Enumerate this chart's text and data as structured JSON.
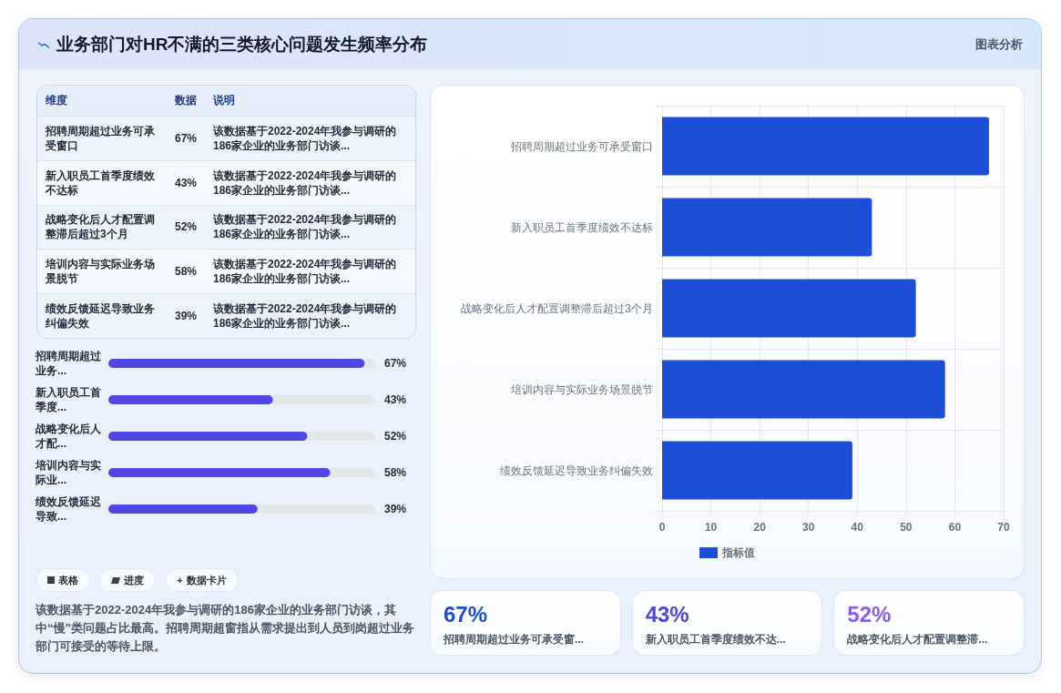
{
  "chart_data": [
    {
      "type": "other",
      "title": "业务部门对HR不满的三类核心问题发生频率分布",
      "annotations": [
        "图表分析"
      ]
    },
    {
      "type": "other",
      "categories": [
        "招聘周期超过业务可承受窗口",
        "新入职员工首季度绩效不达标",
        "战略变化后人才配置调整滞后超过3个月",
        "培训内容与实际业务场景脱节",
        "绩效反馈延迟导致业务纠偏失效"
      ],
      "values": [
        67,
        43,
        52,
        58,
        39
      ],
      "value_labels": [
        "67%",
        "43%",
        "52%",
        "58%",
        "39%"
      ],
      "annotations": [
        "维度",
        "数据",
        "说明",
        "该数据基于2022-2024年我参与调研的186家企业的业务部门访谈...",
        "该数据基于2022-2024年我参与调研的186家企业的业务部门访谈...",
        "该数据基于2022-2024年我参与调研的186家企业的业务部门访谈...",
        "该数据基于2022-2024年我参与调研的186家企业的业务部门访谈...",
        "该数据基于2022-2024年我参与调研的186家企业的业务部门访谈..."
      ]
    },
    {
      "type": "bar",
      "orientation": "horizontal",
      "categories": [
        "招聘周期超过业务可承受窗口",
        "新入职员工首季度绩效不达标",
        "战略变化后人才配置调整滞后超过3个月",
        "培训内容与实际业务场景脱节",
        "绩效反馈延迟导致业务纠偏失效"
      ],
      "series": [
        {
          "name": "指标值",
          "color": "#1d4ed8",
          "values": [
            67,
            43,
            52,
            58,
            39
          ]
        }
      ],
      "xlim": [
        0,
        70
      ],
      "xticks": [
        0,
        10,
        20,
        30,
        40,
        50,
        60,
        70
      ],
      "grid": true,
      "legend": "bottom"
    },
    {
      "type": "bar",
      "orientation": "horizontal",
      "categories": [
        "招聘周期超过业务...",
        "新入职员工首季度...",
        "战略变化后人才配...",
        "培训内容与实际业...",
        "绩效反馈延迟导致..."
      ],
      "values": [
        67,
        43,
        52,
        58,
        39
      ],
      "value_labels": [
        "67%",
        "43%",
        "52%",
        "58%",
        "39%"
      ],
      "color": "#4f46e5"
    },
    {
      "type": "other",
      "annotations": [
        "表格",
        "进度",
        "数据卡片",
        "该数据基于2022-2024年我参与调研的186家企业的业务部门访谈，其中“慢”类问题占比最高。招聘周期超窗指从需求提出到人员到岗超过业务部门可接受的等待上限。"
      ]
    },
    {
      "type": "other",
      "categories": [
        "招聘周期超过业务可承受窗...",
        "新入职员工首季度绩效不达...",
        "战略变化后人才配置调整滞..."
      ],
      "values": [
        67,
        43,
        52
      ],
      "value_labels": [
        "67%",
        "43%",
        "52%"
      ]
    }
  ]
}
